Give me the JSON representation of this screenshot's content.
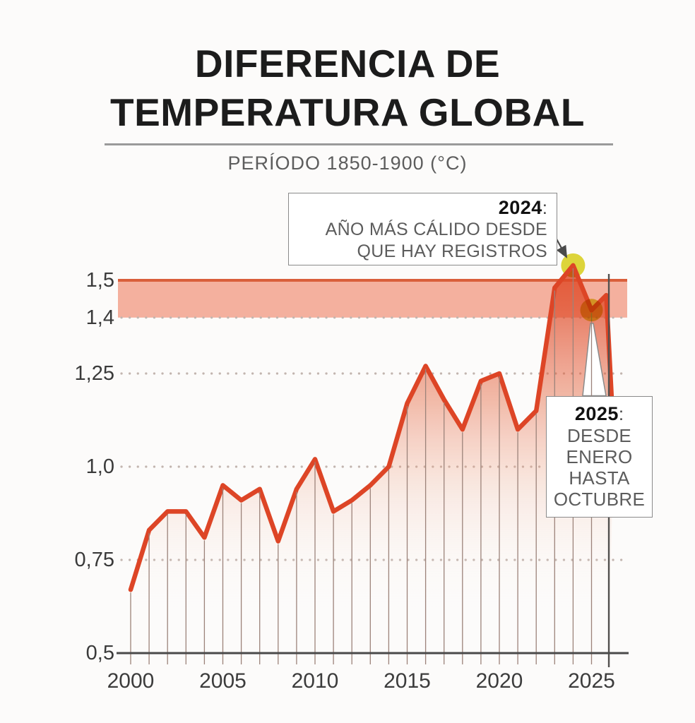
{
  "header": {
    "title_line1": "DIFERENCIA DE",
    "title_line2": "TEMPERATURA GLOBAL",
    "subtitle": "PERÍODO 1850-1900 (°C)"
  },
  "annotations": {
    "a2024": {
      "year": "2024",
      "colon": ":",
      "lines": [
        "AÑO MÁS CÁLIDO DESDE",
        "QUE HAY REGISTROS"
      ]
    },
    "a2025": {
      "year": "2025",
      "colon": ":",
      "lines": [
        "DESDE",
        "ENERO",
        "HASTA",
        "OCTUBRE"
      ]
    }
  },
  "chart_data": {
    "type": "area",
    "title": "Diferencia de temperatura global",
    "subtitle": "Período 1850-1900 (°C)",
    "unit": "°C",
    "x": [
      2000,
      2001,
      2002,
      2003,
      2004,
      2005,
      2006,
      2007,
      2008,
      2009,
      2010,
      2011,
      2012,
      2013,
      2014,
      2015,
      2016,
      2017,
      2018,
      2019,
      2020,
      2021,
      2022,
      2023,
      2024
    ],
    "values": [
      0.67,
      0.83,
      0.88,
      0.88,
      0.81,
      0.95,
      0.91,
      0.94,
      0.8,
      0.94,
      1.02,
      0.88,
      0.91,
      0.95,
      1.0,
      1.17,
      1.27,
      1.18,
      1.1,
      1.23,
      1.25,
      1.1,
      1.15,
      1.48,
      1.54
    ],
    "partial_2025": {
      "year": 2025,
      "value": 1.42,
      "period": "enero-octubre"
    },
    "tail": [
      [
        2025.0,
        1.42
      ],
      [
        2025.8,
        1.46
      ],
      [
        2026.17,
        1.11
      ]
    ],
    "highlight_2024": {
      "year": 2024,
      "value": 1.54
    },
    "y_ticks": [
      {
        "label": "1,5",
        "value": 1.5
      },
      {
        "label": "1,4",
        "value": 1.4
      },
      {
        "label": "1,25",
        "value": 1.25
      },
      {
        "label": "1,0",
        "value": 1.0
      },
      {
        "label": "0,75",
        "value": 0.75
      },
      {
        "label": "0,5",
        "value": 0.5
      }
    ],
    "x_ticks": [
      {
        "label": "2000",
        "value": 2000
      },
      {
        "label": "2005",
        "value": 2005
      },
      {
        "label": "2010",
        "value": 2010
      },
      {
        "label": "2015",
        "value": 2015
      },
      {
        "label": "2020",
        "value": 2020
      },
      {
        "label": "2025",
        "value": 2025
      }
    ],
    "ylim": [
      0.5,
      1.56
    ],
    "xlim": [
      2000,
      2026.5
    ],
    "band": {
      "from": 1.4,
      "to": 1.5
    },
    "dotted_values": [
      1.4,
      1.25,
      1.0,
      0.75
    ],
    "cutoff_line_year": 2025.94,
    "grid": "dotted-horizontal",
    "legend": "none",
    "colors": {
      "line": "#dd4526",
      "band_fill": "#f4b09e",
      "band_line": "#d95f3b",
      "marker_yellow": "#ddd43a",
      "axis": "#4a4a4a",
      "droplines": "#9c837a",
      "dots": "#c2b5af",
      "boundary": "#52504e"
    }
  }
}
